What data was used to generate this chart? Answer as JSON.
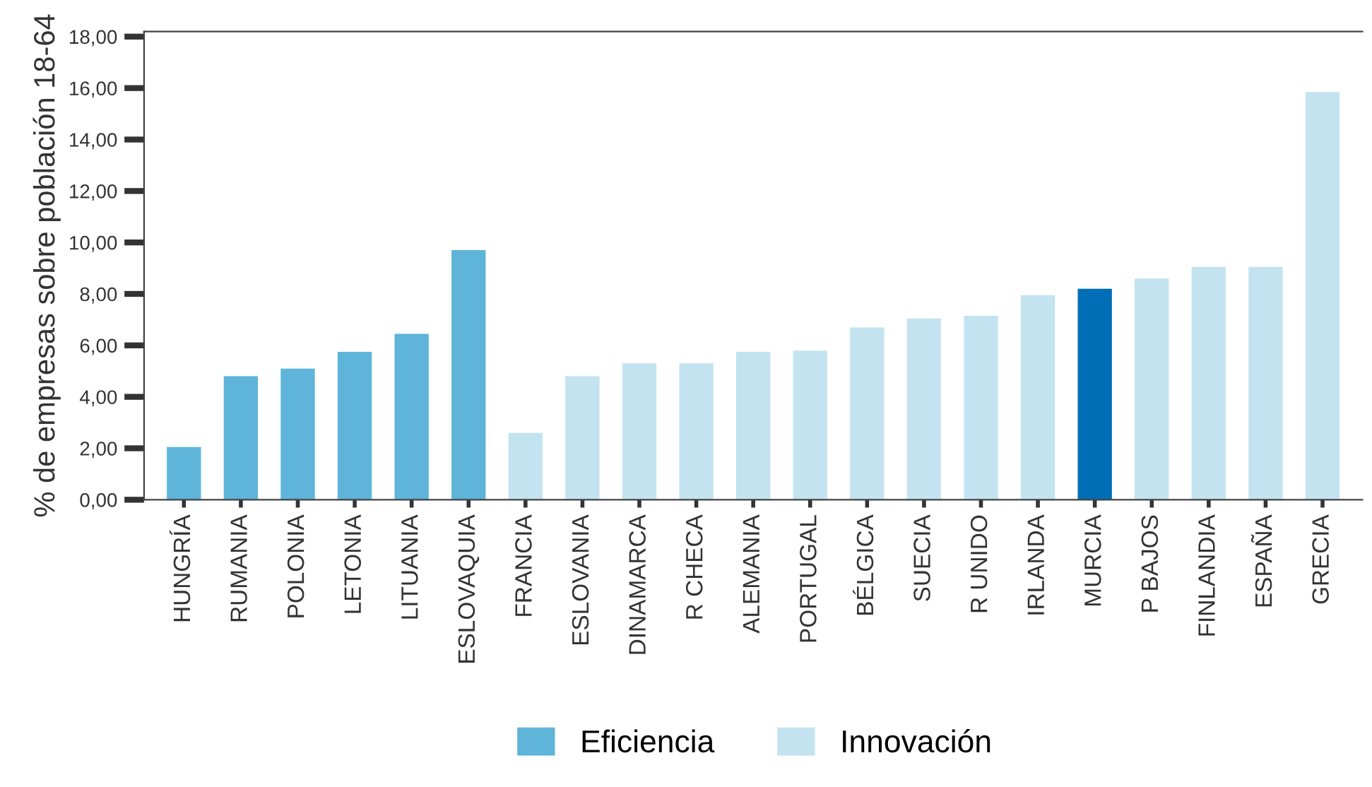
{
  "chart_data": {
    "type": "bar",
    "ylabel": "% de empresas sobre población 18-64",
    "categories": [
      "HUNGRÍA",
      "RUMANIA",
      "POLONIA",
      "LETONIA",
      "LITUANIA",
      "ESLOVAQUIA",
      "FRANCIA",
      "ESLOVANIA",
      "DINAMARCA",
      "R CHECA",
      "ALEMANIA",
      "PORTUGAL",
      "BÉLGICA",
      "SUECIA",
      "R UNIDO",
      "IRLANDA",
      "MURCIA",
      "P BAJOS",
      "FINLANDIA",
      "ESPAÑA",
      "GRECIA"
    ],
    "series": [
      {
        "name": "Eficiencia",
        "color": "#5eb4d9",
        "values": [
          2.05,
          4.8,
          5.1,
          5.75,
          6.45,
          9.7,
          null,
          null,
          null,
          null,
          null,
          null,
          null,
          null,
          null,
          null,
          null,
          null,
          null,
          null,
          null
        ]
      },
      {
        "name": "Innovación",
        "color": "#c4e3f0",
        "colors": [
          "#c4e3f0",
          "#c4e3f0",
          "#c4e3f0",
          "#c4e3f0",
          "#c4e3f0",
          "#c4e3f0",
          "#c4e3f0",
          "#c4e3f0",
          "#c4e3f0",
          "#c4e3f0",
          "#c4e3f0",
          "#c4e3f0",
          "#c4e3f0",
          "#c4e3f0",
          "#c4e3f0",
          "#c4e3f0",
          "#006eb6",
          "#c4e3f0",
          "#c4e3f0",
          "#c4e3f0",
          "#c4e3f0"
        ],
        "values": [
          null,
          null,
          null,
          null,
          null,
          null,
          2.6,
          4.8,
          5.3,
          5.3,
          5.75,
          5.8,
          6.7,
          7.05,
          7.15,
          7.95,
          8.2,
          8.6,
          9.05,
          9.05,
          15.85
        ]
      }
    ],
    "ylim": [
      0,
      18.2
    ],
    "yticks": [
      {
        "value": 0,
        "label": "0,00"
      },
      {
        "value": 2,
        "label": "2,00"
      },
      {
        "value": 4,
        "label": "4,00"
      },
      {
        "value": 6,
        "label": "6,00"
      },
      {
        "value": 8,
        "label": "8,00"
      },
      {
        "value": 10,
        "label": "10,00"
      },
      {
        "value": 12,
        "label": "12,00"
      },
      {
        "value": 14,
        "label": "14,00"
      },
      {
        "value": 16,
        "label": "16,00"
      },
      {
        "value": 18,
        "label": "18,00"
      }
    ],
    "legend": "bottom",
    "grid": false
  }
}
